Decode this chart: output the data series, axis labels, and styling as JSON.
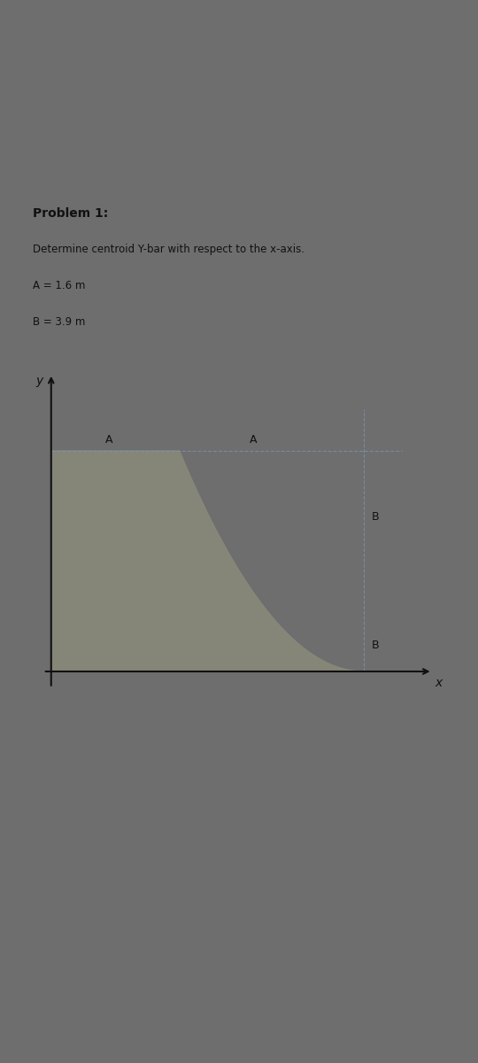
{
  "title": "Problem 1:",
  "subtitle": "Determine centroid Y-bar with respect to the x-axis.",
  "param_A": "A = 1.6 m",
  "param_B": "B = 3.9 m",
  "A": 1.6,
  "B": 3.9,
  "outer_bg": "#6e6e6e",
  "paper_color": "#dedad2",
  "shape_color": "#8a8a7a",
  "shape_alpha": 0.85,
  "axis_color": "#111111",
  "text_color": "#111111",
  "dashed_color": "#7799bb",
  "fig_width": 5.4,
  "fig_height": 12.0,
  "dpi": 100
}
